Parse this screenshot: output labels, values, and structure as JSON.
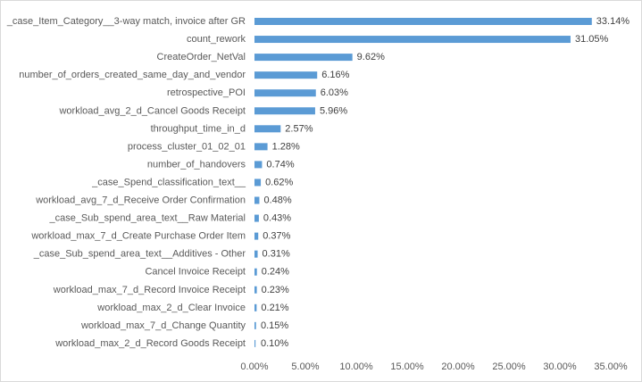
{
  "chart_data": {
    "type": "bar",
    "orientation": "horizontal",
    "bar_color": "#5b9bd5",
    "categories": [
      "_case_Item_Category__3-way match, invoice after GR",
      "count_rework",
      "CreateOrder_NetVal",
      "number_of_orders_created_same_day_and_vendor",
      "retrospective_POI",
      "workload_avg_2_d_Cancel Goods Receipt",
      "throughput_time_in_d",
      "process_cluster_01_02_01",
      "number_of_handovers",
      "_case_Spend_classification_text__",
      "workload_avg_7_d_Receive Order Confirmation",
      "_case_Sub_spend_area_text__Raw Material",
      "workload_max_7_d_Create Purchase Order Item",
      "_case_Sub_spend_area_text__Additives - Other",
      "Cancel Invoice Receipt",
      "workload_max_7_d_Record Invoice Receipt",
      "workload_max_2_d_Clear Invoice",
      "workload_max_7_d_Change Quantity",
      "workload_max_2_d_Record Goods Receipt"
    ],
    "values": [
      33.14,
      31.05,
      9.62,
      6.16,
      6.03,
      5.96,
      2.57,
      1.28,
      0.74,
      0.62,
      0.48,
      0.43,
      0.37,
      0.31,
      0.24,
      0.23,
      0.21,
      0.15,
      0.1
    ],
    "data_labels": [
      "33.14%",
      "31.05%",
      "9.62%",
      "6.16%",
      "6.03%",
      "5.96%",
      "2.57%",
      "1.28%",
      "0.74%",
      "0.62%",
      "0.48%",
      "0.43%",
      "0.37%",
      "0.31%",
      "0.24%",
      "0.23%",
      "0.21%",
      "0.15%",
      "0.10%"
    ],
    "xlim": [
      0,
      35
    ],
    "x_ticks": [
      0,
      5,
      10,
      15,
      20,
      25,
      30,
      35
    ],
    "x_tick_labels": [
      "0.00%",
      "5.00%",
      "10.00%",
      "15.00%",
      "20.00%",
      "25.00%",
      "30.00%",
      "35.00%"
    ],
    "title": "",
    "xlabel": "",
    "ylabel": "",
    "grid": false,
    "legend": "none"
  }
}
